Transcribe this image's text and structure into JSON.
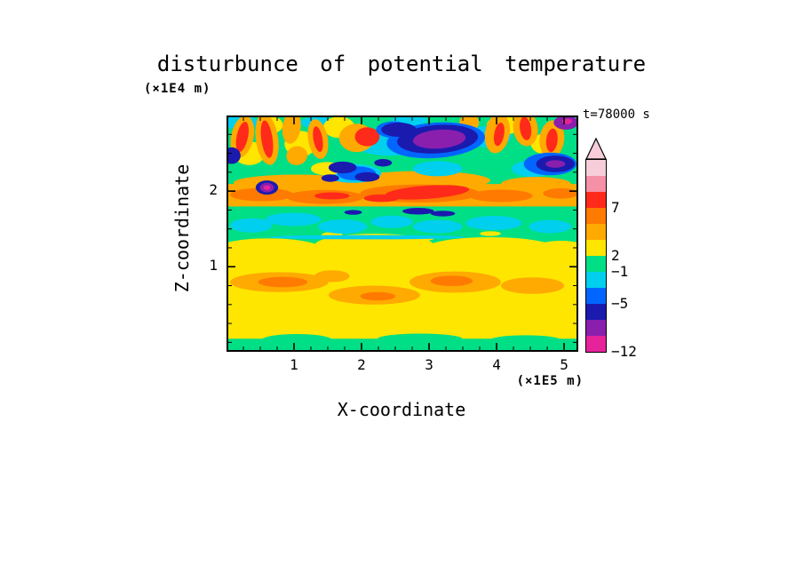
{
  "chart_data": {
    "type": "heatmap",
    "subtype": "filled-contour",
    "title": "disturbunce of potential temperature",
    "time_label": "t=78000 s",
    "x_axis": {
      "label": "X-coordinate",
      "unit_label": "(×1E5 m)",
      "range": [
        0,
        5.21
      ],
      "major_ticks": [
        1,
        2,
        3,
        4,
        5
      ],
      "minor_step": 0.25
    },
    "y_axis": {
      "label": "Z-coordinate",
      "unit_label": "(×1E4 m)",
      "range": [
        -0.125,
        3.0
      ],
      "major_ticks": [
        1,
        2
      ],
      "minor_step": 0.25
    },
    "colorbar": {
      "arrow_color": "#f7cdd9",
      "labeled_levels": [
        "7",
        "2",
        "−1",
        "−5",
        "−12"
      ],
      "segments": [
        {
          "color": "#f7cdd9",
          "label_below": ""
        },
        {
          "color": "#f590a6",
          "label_below": ""
        },
        {
          "color": "#ff2a1a",
          "label_below": "7"
        },
        {
          "color": "#ff7a00",
          "label_below": ""
        },
        {
          "color": "#ffaa00",
          "label_below": ""
        },
        {
          "color": "#ffe600",
          "label_below": "2"
        },
        {
          "color": "#00df85",
          "label_below": "−1"
        },
        {
          "color": "#00cfee",
          "label_below": ""
        },
        {
          "color": "#0066ff",
          "label_below": "−5"
        },
        {
          "color": "#1a1aae",
          "label_below": ""
        },
        {
          "color": "#8a1fae",
          "label_below": ""
        },
        {
          "color": "#e6239b",
          "label_below": "−12"
        }
      ]
    },
    "field_layers": [
      {
        "c": "#00df85",
        "s": [
          {
            "r": [
              0,
              0,
              1,
              1
            ]
          }
        ]
      },
      {
        "c": "#ffe600",
        "s": [
          {
            "r": [
              0,
              0.56,
              1,
              0.385
            ]
          },
          {
            "e": [
              0.12,
              0.565,
              0.15,
              0.045
            ]
          },
          {
            "e": [
              0.42,
              0.55,
              0.17,
              0.05
            ]
          },
          {
            "e": [
              0.75,
              0.56,
              0.18,
              0.045
            ]
          },
          {
            "e": [
              0.95,
              0.57,
              0.08,
              0.04
            ]
          }
        ]
      },
      {
        "c": "#00df85",
        "s": [
          {
            "r": [
              0,
              0.945,
              1,
              0.055
            ]
          },
          {
            "e": [
              0.2,
              0.95,
              0.1,
              0.025
            ]
          },
          {
            "e": [
              0.55,
              0.945,
              0.12,
              0.022
            ]
          },
          {
            "e": [
              0.85,
              0.95,
              0.1,
              0.02
            ]
          }
        ]
      },
      {
        "c": "#ffaa00",
        "s": [
          {
            "e": [
              0.15,
              0.705,
              0.14,
              0.042
            ]
          },
          {
            "e": [
              0.42,
              0.76,
              0.13,
              0.04
            ]
          },
          {
            "e": [
              0.65,
              0.705,
              0.13,
              0.045
            ]
          },
          {
            "e": [
              0.87,
              0.72,
              0.09,
              0.035
            ]
          },
          {
            "e": [
              0.3,
              0.68,
              0.05,
              0.025
            ]
          }
        ]
      },
      {
        "c": "#ff7a00",
        "s": [
          {
            "e": [
              0.16,
              0.705,
              0.07,
              0.022
            ]
          },
          {
            "e": [
              0.64,
              0.7,
              0.06,
              0.022
            ]
          },
          {
            "e": [
              0.43,
              0.765,
              0.05,
              0.018
            ]
          }
        ]
      },
      {
        "c": "#ffe600",
        "s": [
          {
            "e": [
              0.3,
              0.505,
              0.03,
              0.012
            ]
          },
          {
            "e": [
              0.55,
              0.52,
              0.04,
              0.012
            ]
          },
          {
            "e": [
              0.75,
              0.5,
              0.03,
              0.01
            ]
          }
        ]
      },
      {
        "c": "#00cfee",
        "s": [
          {
            "e": [
              0.07,
              0.465,
              0.06,
              0.03
            ]
          },
          {
            "e": [
              0.19,
              0.44,
              0.08,
              0.028
            ]
          },
          {
            "e": [
              0.33,
              0.47,
              0.07,
              0.03
            ]
          },
          {
            "e": [
              0.47,
              0.45,
              0.06,
              0.026
            ]
          },
          {
            "e": [
              0.6,
              0.47,
              0.07,
              0.028
            ]
          },
          {
            "e": [
              0.76,
              0.455,
              0.08,
              0.03
            ]
          },
          {
            "e": [
              0.92,
              0.47,
              0.06,
              0.028
            ]
          },
          {
            "e": [
              0.4,
              0.515,
              0.28,
              0.009
            ]
          }
        ]
      },
      {
        "c": "#ffaa00",
        "s": [
          {
            "r": [
              0,
              0.29,
              1,
              0.095
            ]
          },
          {
            "e": [
              0.2,
              0.285,
              0.18,
              0.035
            ]
          },
          {
            "e": [
              0.55,
              0.275,
              0.2,
              0.04
            ]
          },
          {
            "e": [
              0.88,
              0.29,
              0.1,
              0.03
            ]
          }
        ]
      },
      {
        "c": "#ff7a00",
        "s": [
          {
            "e": [
              0.1,
              0.335,
              0.09,
              0.028
            ]
          },
          {
            "e": [
              0.28,
              0.345,
              0.11,
              0.03
            ]
          },
          {
            "e": [
              0.55,
              0.33,
              0.17,
              0.038
            ]
          },
          {
            "e": [
              0.78,
              0.34,
              0.09,
              0.026
            ]
          },
          {
            "e": [
              0.95,
              0.33,
              0.05,
              0.022
            ]
          }
        ]
      },
      {
        "c": "#ff2a1a",
        "s": [
          {
            "e": [
              0.57,
              0.325,
              0.12,
              0.028,
              -4
            ]
          },
          {
            "e": [
              0.44,
              0.35,
              0.05,
              0.016
            ]
          },
          {
            "e": [
              0.3,
              0.34,
              0.05,
              0.015
            ]
          }
        ]
      },
      {
        "c": "#1a1aae",
        "s": [
          {
            "e": [
              0.545,
              0.405,
              0.045,
              0.014
            ]
          },
          {
            "e": [
              0.615,
              0.415,
              0.035,
              0.012
            ]
          },
          {
            "e": [
              0.36,
              0.41,
              0.025,
              0.01
            ]
          }
        ]
      },
      {
        "c": "#00cfee",
        "s": [
          {
            "e": [
              0.46,
              0.115,
              0.1,
              0.055
            ]
          },
          {
            "e": [
              0.74,
              0.09,
              0.07,
              0.045
            ]
          },
          {
            "e": [
              0.36,
              0.245,
              0.08,
              0.04
            ]
          },
          {
            "e": [
              0.6,
              0.225,
              0.07,
              0.032
            ]
          },
          {
            "e": [
              0.04,
              0.03,
              0.05,
              0.03
            ]
          },
          {
            "e": [
              0.87,
              0.225,
              0.06,
              0.035
            ]
          },
          {
            "e": [
              0.26,
              0.03,
              0.05,
              0.025
            ]
          },
          {
            "e": [
              0.52,
              0.02,
              0.05,
              0.025
            ]
          }
        ]
      },
      {
        "c": "#ffe600",
        "s": [
          {
            "e": [
              0.065,
              0.16,
              0.045,
              0.05
            ]
          },
          {
            "e": [
              0.21,
              0.12,
              0.045,
              0.055
            ]
          },
          {
            "e": [
              0.32,
              0.05,
              0.045,
              0.045
            ]
          },
          {
            "e": [
              0.79,
              0.04,
              0.05,
              0.04
            ]
          },
          {
            "e": [
              0.91,
              0.12,
              0.045,
              0.045
            ]
          },
          {
            "e": [
              0.285,
              0.225,
              0.045,
              0.028
            ]
          },
          {
            "e": [
              0.13,
              0.04,
              0.03,
              0.035
            ]
          }
        ]
      },
      {
        "c": "#ffaa00",
        "s": [
          {
            "e": [
              0.045,
              0.09,
              0.032,
              0.09,
              12
            ]
          },
          {
            "e": [
              0.115,
              0.1,
              0.032,
              0.11,
              -8
            ]
          },
          {
            "e": [
              0.185,
              0.05,
              0.026,
              0.07,
              8
            ]
          },
          {
            "e": [
              0.26,
              0.1,
              0.028,
              0.085,
              -10
            ]
          },
          {
            "e": [
              0.37,
              0.095,
              0.05,
              0.06
            ]
          },
          {
            "e": [
              0.77,
              0.075,
              0.035,
              0.085,
              10
            ]
          },
          {
            "e": [
              0.85,
              0.055,
              0.035,
              0.075,
              -8
            ]
          },
          {
            "e": [
              0.925,
              0.1,
              0.035,
              0.08,
              6
            ]
          },
          {
            "e": [
              0.69,
              0.03,
              0.028,
              0.035
            ]
          },
          {
            "e": [
              0.2,
              0.17,
              0.03,
              0.04,
              -12
            ]
          }
        ]
      },
      {
        "c": "#ff2a1a",
        "s": [
          {
            "e": [
              0.045,
              0.09,
              0.016,
              0.065,
              12
            ]
          },
          {
            "e": [
              0.115,
              0.1,
              0.016,
              0.08,
              -8
            ]
          },
          {
            "e": [
              0.26,
              0.1,
              0.013,
              0.055,
              -10
            ]
          },
          {
            "e": [
              0.4,
              0.09,
              0.035,
              0.04
            ]
          },
          {
            "e": [
              0.85,
              0.055,
              0.016,
              0.05,
              -8
            ]
          },
          {
            "e": [
              0.925,
              0.105,
              0.016,
              0.05,
              6
            ]
          },
          {
            "e": [
              0.775,
              0.08,
              0.014,
              0.05,
              10
            ]
          }
        ]
      },
      {
        "c": "#0066ff",
        "s": [
          {
            "e": [
              0.595,
              0.105,
              0.14,
              0.075,
              -4
            ]
          },
          {
            "e": [
              0.92,
              0.205,
              0.075,
              0.048
            ]
          },
          {
            "e": [
              0.37,
              0.245,
              0.055,
              0.03
            ]
          },
          {
            "e": [
              0.475,
              0.06,
              0.05,
              0.035
            ]
          }
        ]
      },
      {
        "c": "#1a1aae",
        "s": [
          {
            "e": [
              0.6,
              0.1,
              0.115,
              0.06,
              -4
            ]
          },
          {
            "e": [
              0.49,
              0.06,
              0.05,
              0.03
            ]
          },
          {
            "e": [
              0.935,
              0.205,
              0.055,
              0.035
            ]
          },
          {
            "e": [
              0.33,
              0.22,
              0.04,
              0.025
            ]
          },
          {
            "e": [
              0.4,
              0.26,
              0.035,
              0.02
            ]
          },
          {
            "e": [
              0.295,
              0.265,
              0.025,
              0.016
            ]
          },
          {
            "e": [
              0.445,
              0.2,
              0.025,
              0.016
            ]
          },
          {
            "e": [
              0.015,
              0.17,
              0.025,
              0.035
            ]
          },
          {
            "e": [
              0.115,
              0.305,
              0.032,
              0.03
            ]
          }
        ]
      },
      {
        "c": "#8a1fae",
        "s": [
          {
            "e": [
              0.605,
              0.1,
              0.075,
              0.04,
              -4
            ]
          },
          {
            "e": [
              0.965,
              0.03,
              0.035,
              0.03
            ]
          },
          {
            "e": [
              0.115,
              0.305,
              0.02,
              0.02
            ]
          },
          {
            "e": [
              0.935,
              0.205,
              0.028,
              0.016
            ]
          }
        ]
      },
      {
        "c": "#e6239b",
        "s": [
          {
            "e": [
              0.115,
              0.305,
              0.01,
              0.01
            ]
          },
          {
            "e": [
              0.968,
              0.025,
              0.014,
              0.012
            ]
          }
        ]
      }
    ]
  }
}
